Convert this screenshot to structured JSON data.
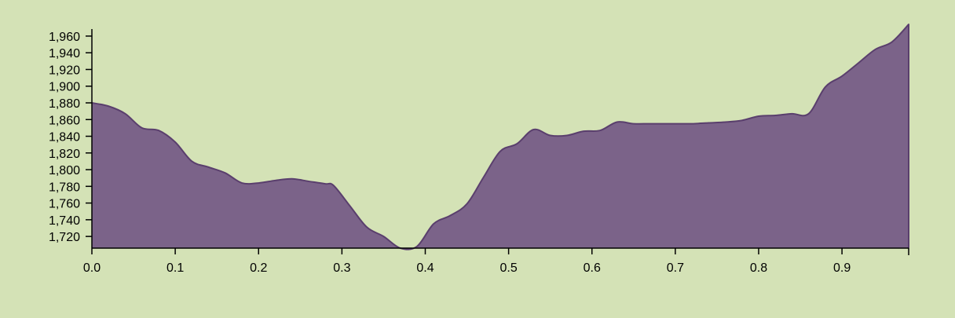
{
  "page": {
    "background": "#d4e2b6"
  },
  "chart_data": {
    "type": "area",
    "title": "",
    "xlabel": "",
    "ylabel": "",
    "fill_color": "#7b6389",
    "stroke_color": "#5a3f6d",
    "xlim": [
      0,
      0.98
    ],
    "ylim": [
      1706,
      1975
    ],
    "x_ticks": [
      0.0,
      0.1,
      0.2,
      0.3,
      0.4,
      0.5,
      0.6,
      0.7,
      0.8,
      0.9
    ],
    "x_tick_labels": [
      "0.0",
      "0.1",
      "0.2",
      "0.3",
      "0.4",
      "0.5",
      "0.6",
      "0.7",
      "0.8",
      "0.9"
    ],
    "y_ticks": [
      1720,
      1740,
      1760,
      1780,
      1800,
      1820,
      1840,
      1860,
      1880,
      1900,
      1920,
      1940,
      1960
    ],
    "y_tick_labels": [
      "1,720",
      "1,740",
      "1,760",
      "1,780",
      "1,800",
      "1,820",
      "1,840",
      "1,860",
      "1,880",
      "1,900",
      "1,920",
      "1,940",
      "1,960"
    ],
    "grid": false,
    "legend": "none",
    "x": [
      0.0,
      0.02,
      0.04,
      0.06,
      0.08,
      0.1,
      0.12,
      0.14,
      0.16,
      0.18,
      0.2,
      0.22,
      0.24,
      0.26,
      0.28,
      0.29,
      0.31,
      0.33,
      0.35,
      0.37,
      0.39,
      0.41,
      0.43,
      0.45,
      0.47,
      0.49,
      0.51,
      0.53,
      0.55,
      0.57,
      0.59,
      0.61,
      0.63,
      0.65,
      0.67,
      0.7,
      0.72,
      0.74,
      0.76,
      0.78,
      0.8,
      0.82,
      0.84,
      0.86,
      0.88,
      0.9,
      0.92,
      0.94,
      0.96,
      0.98
    ],
    "y": [
      1880,
      1876,
      1867,
      1850,
      1847,
      1833,
      1810,
      1803,
      1796,
      1784,
      1784,
      1787,
      1789,
      1786,
      1783,
      1781,
      1756,
      1731,
      1720,
      1706,
      1708,
      1735,
      1745,
      1759,
      1791,
      1822,
      1831,
      1848,
      1841,
      1841,
      1846,
      1847,
      1857,
      1855,
      1855,
      1855,
      1855,
      1856,
      1857,
      1859,
      1864,
      1865,
      1867,
      1867,
      1899,
      1912,
      1928,
      1944,
      1953,
      1974
    ]
  }
}
